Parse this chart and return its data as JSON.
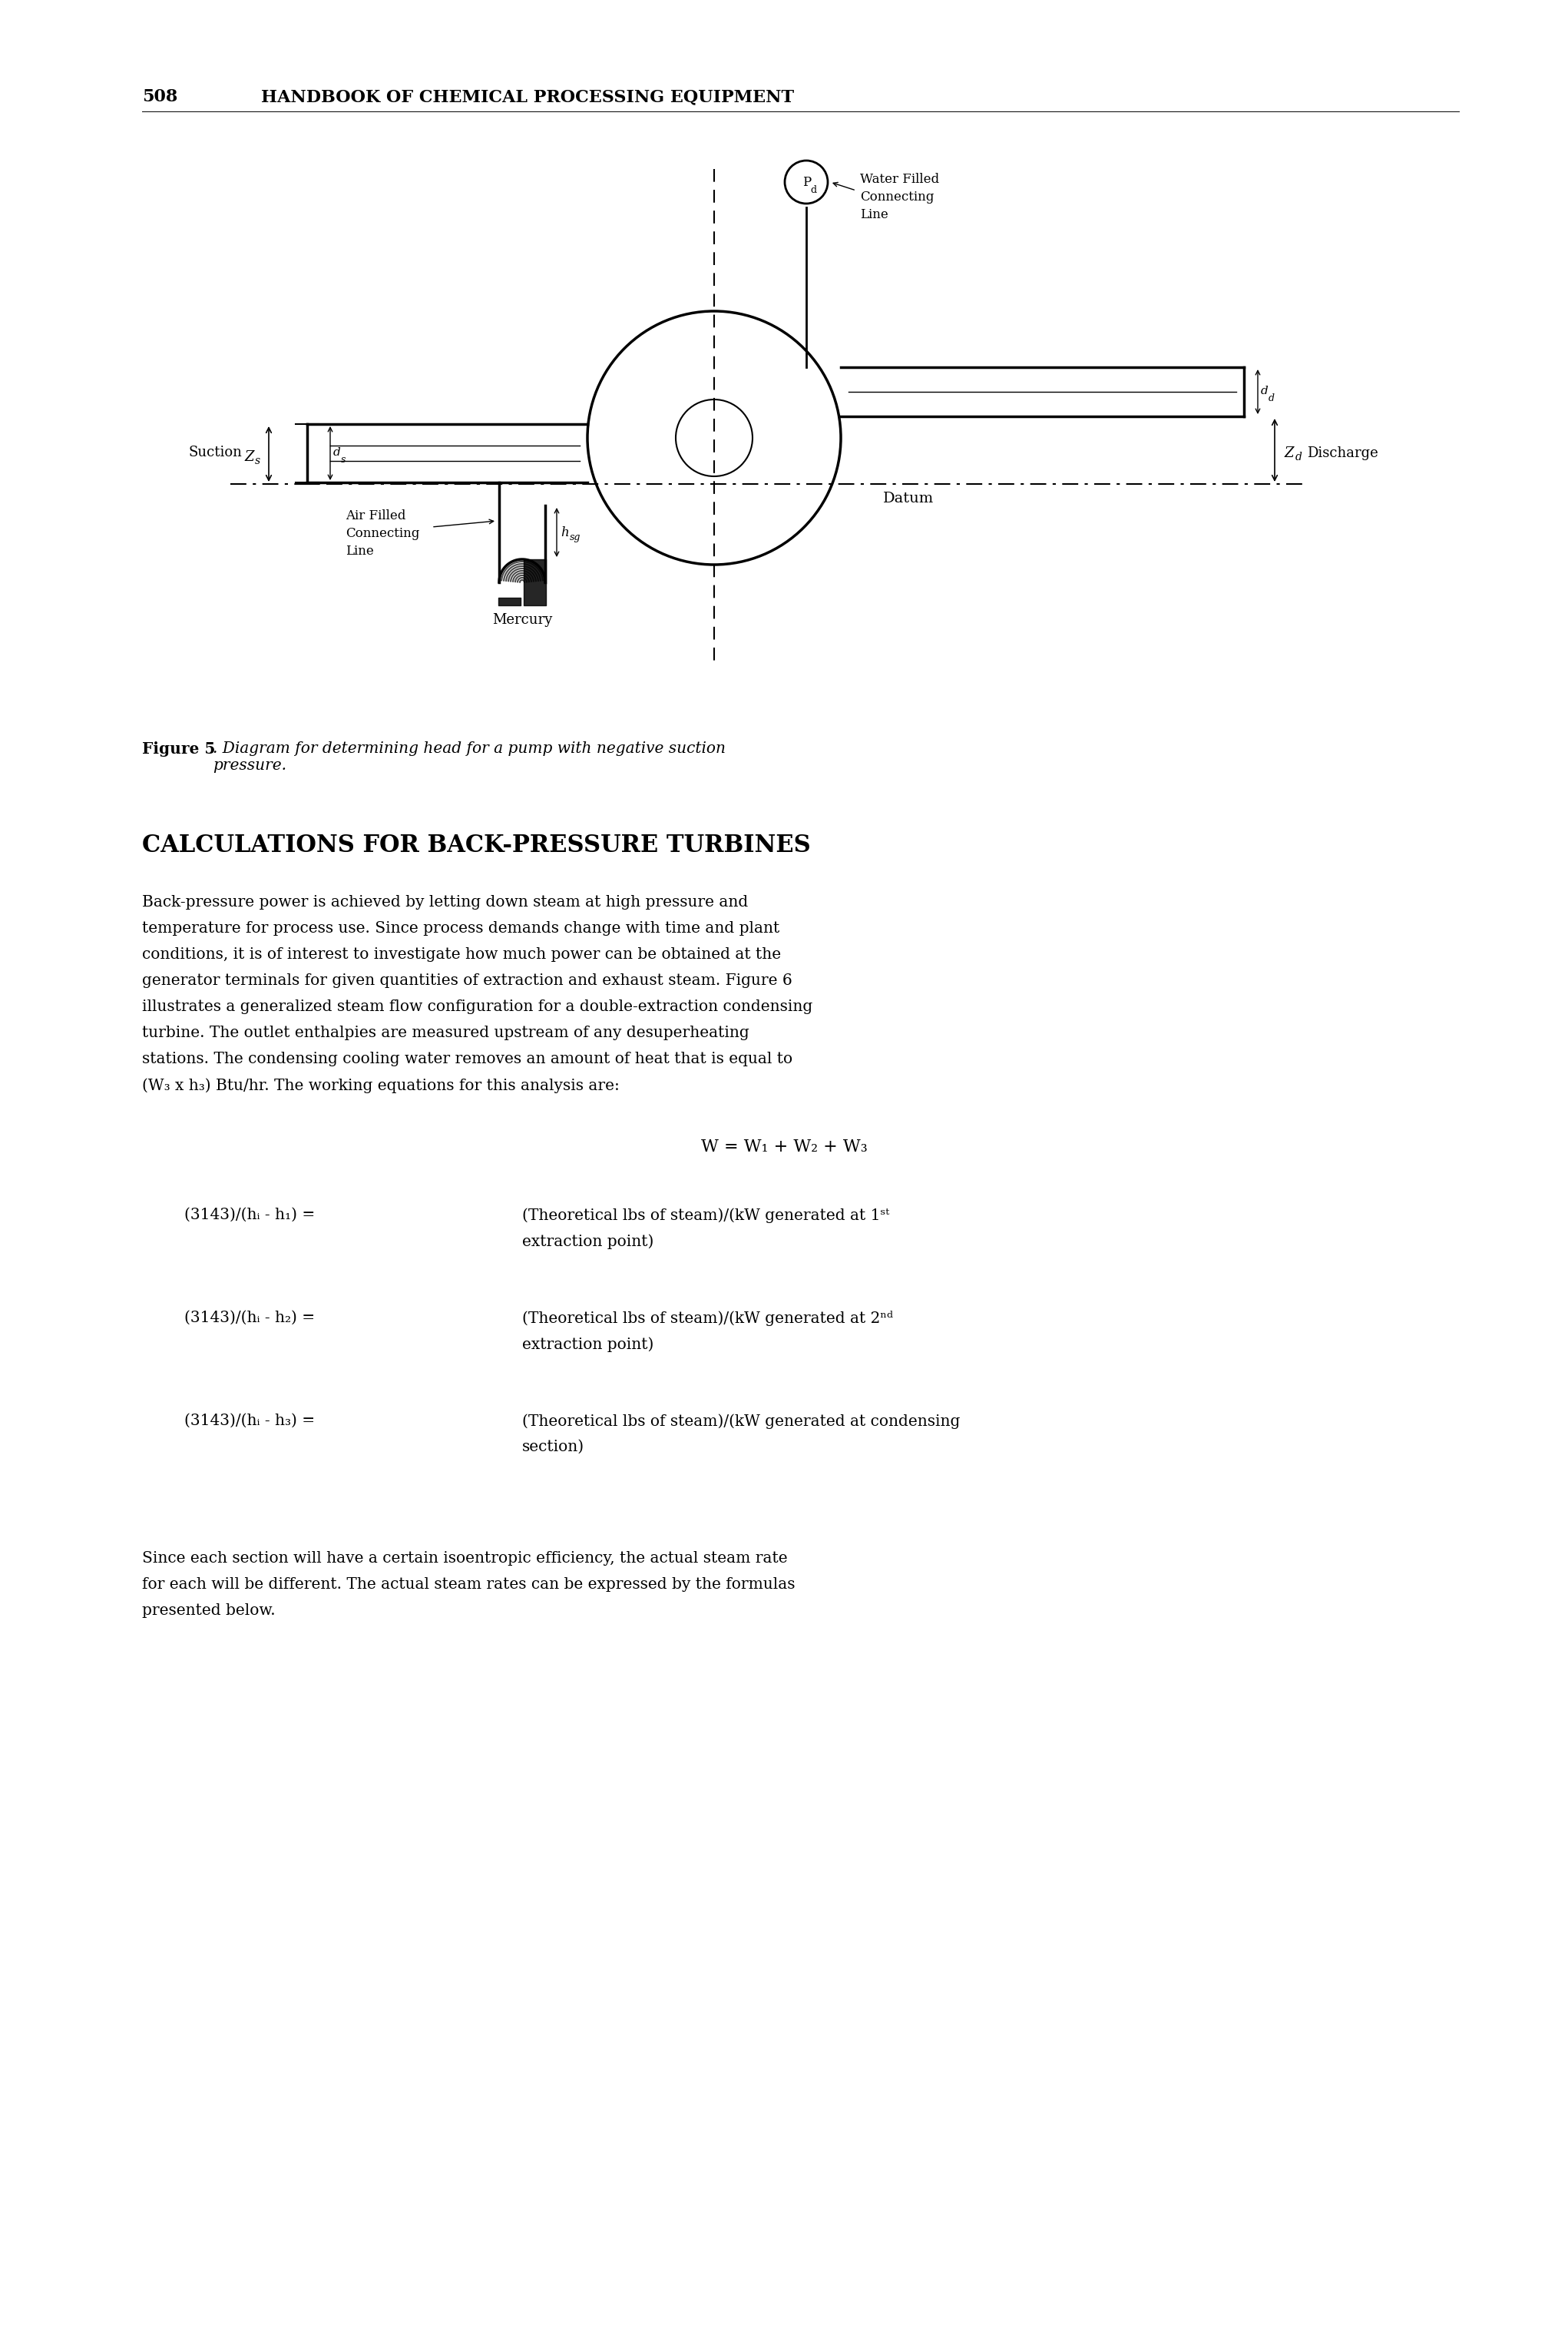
{
  "page_number": "508",
  "header_text": "HANDBOOK OF CHEMICAL PROCESSING EQUIPMENT",
  "figure_caption_bold": "Figure 5",
  "figure_caption_italic": ". Diagram for determining head for a pump with negative suction\npressure.",
  "section_title": "CALCULATIONS FOR BACK-PRESSURE TURBINES",
  "paragraph1_lines": [
    "Back-pressure power is achieved by letting down steam at high pressure and",
    "temperature for process use. Since process demands change with time and plant",
    "conditions, it is of interest to investigate how much power can be obtained at the",
    "generator terminals for given quantities of extraction and exhaust steam. Figure 6",
    "illustrates a generalized steam flow configuration for a double-extraction condensing",
    "turbine. The outlet enthalpies are measured upstream of any desuperheating",
    "stations. The condensing cooling water removes an amount of heat that is equal to",
    "(W₃ x h₃) Btu/hr. The working equations for this analysis are:"
  ],
  "equation": "W = W₁ + W₂ + W₃",
  "eq_rows": [
    {
      "left": "(3143)/(hᵢ - h₁) =",
      "right_line1": "(Theoretical lbs of steam)/(kW generated at 1ˢᵗ",
      "right_line2": "extraction point)"
    },
    {
      "left": "(3143)/(hᵢ - h₂) =",
      "right_line1": "(Theoretical lbs of steam)/(kW generated at 2ⁿᵈ",
      "right_line2": "extraction point)"
    },
    {
      "left": "(3143)/(hᵢ - h₃) =",
      "right_line1": "(Theoretical lbs of steam)/(kW generated at condensing",
      "right_line2": "section)"
    }
  ],
  "paragraph2_lines": [
    "Since each section will have a certain isoentropic efficiency, the actual steam rate",
    "for each will be different. The actual steam rates can be expressed by the formulas",
    "presented below."
  ],
  "bg_color": "#ffffff",
  "text_color": "#000000"
}
